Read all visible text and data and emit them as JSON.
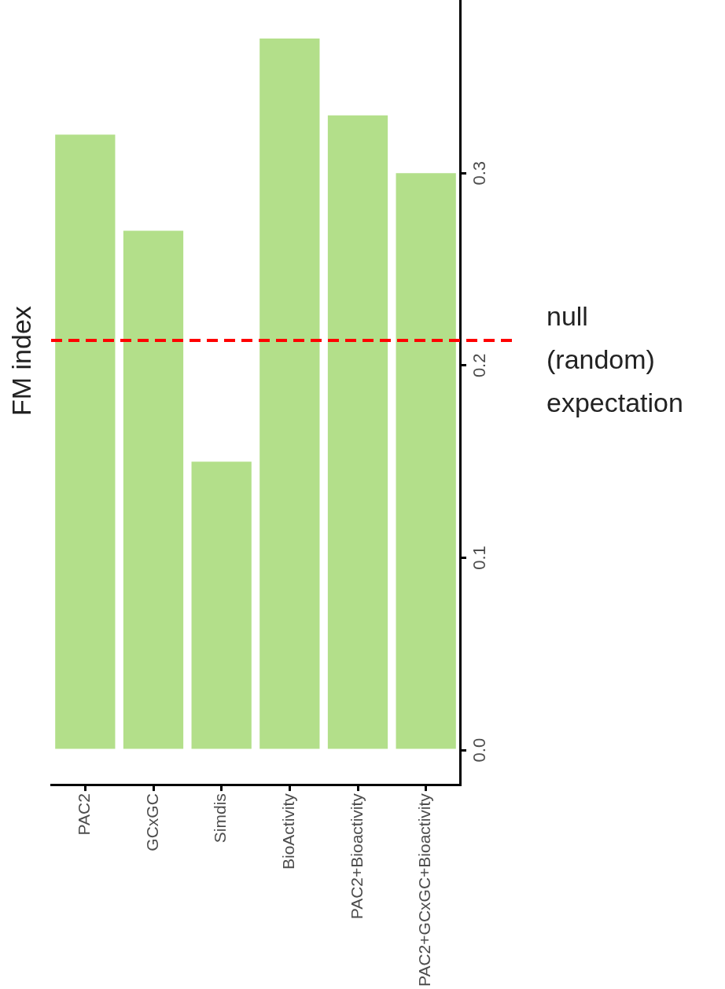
{
  "chart_data": {
    "type": "bar",
    "ylabel": "FM index",
    "categories": [
      "PAC2",
      "GCxGC",
      "Simdis",
      "BioActivity",
      "PAC2+Bioactivity",
      "PAC2+GCxGC+Bioactivity"
    ],
    "values": [
      0.32,
      0.27,
      0.15,
      0.37,
      0.33,
      0.3
    ],
    "color": "#b3df8a",
    "ylim": [
      -0.018,
      0.39
    ],
    "yticks": [
      {
        "value": 0,
        "label": "0.0"
      },
      0.1,
      0.2,
      0.3
    ],
    "grid": false,
    "ref_lines": [
      {
        "axis": "y",
        "value": 0.213,
        "label": "null (random) expectation",
        "color": "#ff0000",
        "line_style": "dashed"
      }
    ]
  }
}
